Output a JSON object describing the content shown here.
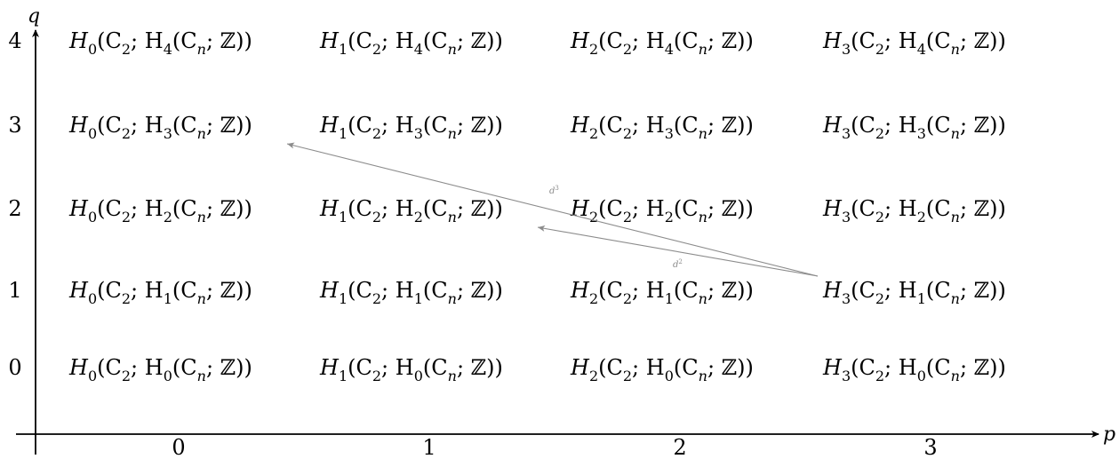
{
  "axes": {
    "x_label": "p",
    "y_label": "q",
    "x_ticks": [
      "0",
      "1",
      "2",
      "3"
    ],
    "y_ticks": [
      "0",
      "1",
      "2",
      "3",
      "4"
    ],
    "color": "#000000"
  },
  "cells": [
    {
      "p": 0,
      "q": 4,
      "lead": "H",
      "lead_sub": "0",
      "mid": "(C",
      "mid_sub": "2",
      "sep": "; H",
      "sep_sub": "4",
      "open": "(C",
      "tail": "n",
      "end": "; ℤ))"
    },
    {
      "p": 1,
      "q": 4,
      "lead": "H",
      "lead_sub": "1",
      "mid": "(C",
      "mid_sub": "2",
      "sep": "; H",
      "sep_sub": "4",
      "open": "(C",
      "tail": "n",
      "end": "; ℤ))"
    },
    {
      "p": 2,
      "q": 4,
      "lead": "H",
      "lead_sub": "2",
      "mid": "(C",
      "mid_sub": "2",
      "sep": "; H",
      "sep_sub": "4",
      "open": "(C",
      "tail": "n",
      "end": "; ℤ))"
    },
    {
      "p": 3,
      "q": 4,
      "lead": "H",
      "lead_sub": "3",
      "mid": "(C",
      "mid_sub": "2",
      "sep": "; H",
      "sep_sub": "4",
      "open": "(C",
      "tail": "n",
      "end": "; ℤ))"
    },
    {
      "p": 0,
      "q": 3,
      "lead": "H",
      "lead_sub": "0",
      "mid": "(C",
      "mid_sub": "2",
      "sep": "; H",
      "sep_sub": "3",
      "open": "(C",
      "tail": "n",
      "end": "; ℤ))"
    },
    {
      "p": 1,
      "q": 3,
      "lead": "H",
      "lead_sub": "1",
      "mid": "(C",
      "mid_sub": "2",
      "sep": "; H",
      "sep_sub": "3",
      "open": "(C",
      "tail": "n",
      "end": "; ℤ))"
    },
    {
      "p": 2,
      "q": 3,
      "lead": "H",
      "lead_sub": "2",
      "mid": "(C",
      "mid_sub": "2",
      "sep": "; H",
      "sep_sub": "3",
      "open": "(C",
      "tail": "n",
      "end": "; ℤ))"
    },
    {
      "p": 3,
      "q": 3,
      "lead": "H",
      "lead_sub": "3",
      "mid": "(C",
      "mid_sub": "2",
      "sep": "; H",
      "sep_sub": "3",
      "open": "(C",
      "tail": "n",
      "end": "; ℤ))"
    },
    {
      "p": 0,
      "q": 2,
      "lead": "H",
      "lead_sub": "0",
      "mid": "(C",
      "mid_sub": "2",
      "sep": "; H",
      "sep_sub": "2",
      "open": "(C",
      "tail": "n",
      "end": "; ℤ))"
    },
    {
      "p": 1,
      "q": 2,
      "lead": "H",
      "lead_sub": "1",
      "mid": "(C",
      "mid_sub": "2",
      "sep": "; H",
      "sep_sub": "2",
      "open": "(C",
      "tail": "n",
      "end": "; ℤ))"
    },
    {
      "p": 2,
      "q": 2,
      "lead": "H",
      "lead_sub": "2",
      "mid": "(C",
      "mid_sub": "2",
      "sep": "; H",
      "sep_sub": "2",
      "open": "(C",
      "tail": "n",
      "end": "; ℤ))"
    },
    {
      "p": 3,
      "q": 2,
      "lead": "H",
      "lead_sub": "3",
      "mid": "(C",
      "mid_sub": "2",
      "sep": "; H",
      "sep_sub": "2",
      "open": "(C",
      "tail": "n",
      "end": "; ℤ))"
    },
    {
      "p": 0,
      "q": 1,
      "lead": "H",
      "lead_sub": "0",
      "mid": "(C",
      "mid_sub": "2",
      "sep": "; H",
      "sep_sub": "1",
      "open": "(C",
      "tail": "n",
      "end": "; ℤ))"
    },
    {
      "p": 1,
      "q": 1,
      "lead": "H",
      "lead_sub": "1",
      "mid": "(C",
      "mid_sub": "2",
      "sep": "; H",
      "sep_sub": "1",
      "open": "(C",
      "tail": "n",
      "end": "; ℤ))"
    },
    {
      "p": 2,
      "q": 1,
      "lead": "H",
      "lead_sub": "2",
      "mid": "(C",
      "mid_sub": "2",
      "sep": "; H",
      "sep_sub": "1",
      "open": "(C",
      "tail": "n",
      "end": "; ℤ))"
    },
    {
      "p": 3,
      "q": 1,
      "lead": "H",
      "lead_sub": "3",
      "mid": "(C",
      "mid_sub": "2",
      "sep": "; H",
      "sep_sub": "1",
      "open": "(C",
      "tail": "n",
      "end": "; ℤ))"
    },
    {
      "p": 0,
      "q": 0,
      "lead": "H",
      "lead_sub": "0",
      "mid": "(C",
      "mid_sub": "2",
      "sep": "; H",
      "sep_sub": "0",
      "open": "(C",
      "tail": "n",
      "end": "; ℤ))"
    },
    {
      "p": 1,
      "q": 0,
      "lead": "H",
      "lead_sub": "1",
      "mid": "(C",
      "mid_sub": "2",
      "sep": "; H",
      "sep_sub": "0",
      "open": "(C",
      "tail": "n",
      "end": "; ℤ))"
    },
    {
      "p": 2,
      "q": 0,
      "lead": "H",
      "lead_sub": "2",
      "mid": "(C",
      "mid_sub": "2",
      "sep": "; H",
      "sep_sub": "0",
      "open": "(C",
      "tail": "n",
      "end": "; ℤ))"
    },
    {
      "p": 3,
      "q": 0,
      "lead": "H",
      "lead_sub": "3",
      "mid": "(C",
      "mid_sub": "2",
      "sep": "; H",
      "sep_sub": "0",
      "open": "(C",
      "tail": "n",
      "end": "; ℤ))"
    }
  ],
  "differentials": [
    {
      "name": "d",
      "power": "3",
      "from": {
        "p": 3,
        "q": 1
      },
      "to": {
        "p": 0,
        "q": 3
      }
    },
    {
      "name": "d",
      "power": "2",
      "from": {
        "p": 3,
        "q": 1
      },
      "to": {
        "p": 1,
        "q": 2
      }
    }
  ],
  "colors": {
    "text": "#000000",
    "axis": "#000000",
    "differential": "#8c8c8c",
    "background": "#ffffff"
  }
}
